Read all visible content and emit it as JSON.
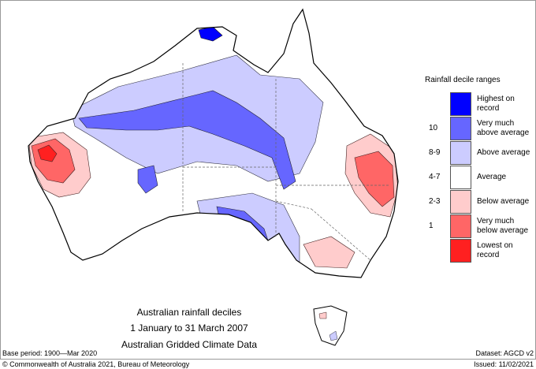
{
  "legend": {
    "title": "Rainfall decile ranges",
    "items": [
      {
        "label_line1": "Highest on",
        "label_line2": "record",
        "decile": "",
        "color": "#0000ff"
      },
      {
        "label_line1": "Very much",
        "label_line2": "above average",
        "decile": "10",
        "color": "#6666ff"
      },
      {
        "label_line1": "Above average",
        "label_line2": "",
        "decile": "8-9",
        "color": "#ccccff"
      },
      {
        "label_line1": "Average",
        "label_line2": "",
        "decile": "4-7",
        "color": "#ffffff"
      },
      {
        "label_line1": "Below average",
        "label_line2": "",
        "decile": "2-3",
        "color": "#ffcccc"
      },
      {
        "label_line1": "Very much",
        "label_line2": "below average",
        "decile": "1",
        "color": "#ff6666"
      },
      {
        "label_line1": "Lowest on",
        "label_line2": "record",
        "decile": "",
        "color": "#ff2020"
      }
    ]
  },
  "title": {
    "line1": "Australian rainfall deciles",
    "line2": "1 January to 31 March 2007",
    "line3": "Australian Gridded Climate Data"
  },
  "footer": {
    "base_period": "Base period: 1900—Mar 2020",
    "dataset": "Dataset: AGCD v2",
    "copyright": "© Commonwealth of Australia 2021, Bureau of Meteorology",
    "issued": "Issued: 11/02/2021"
  }
}
